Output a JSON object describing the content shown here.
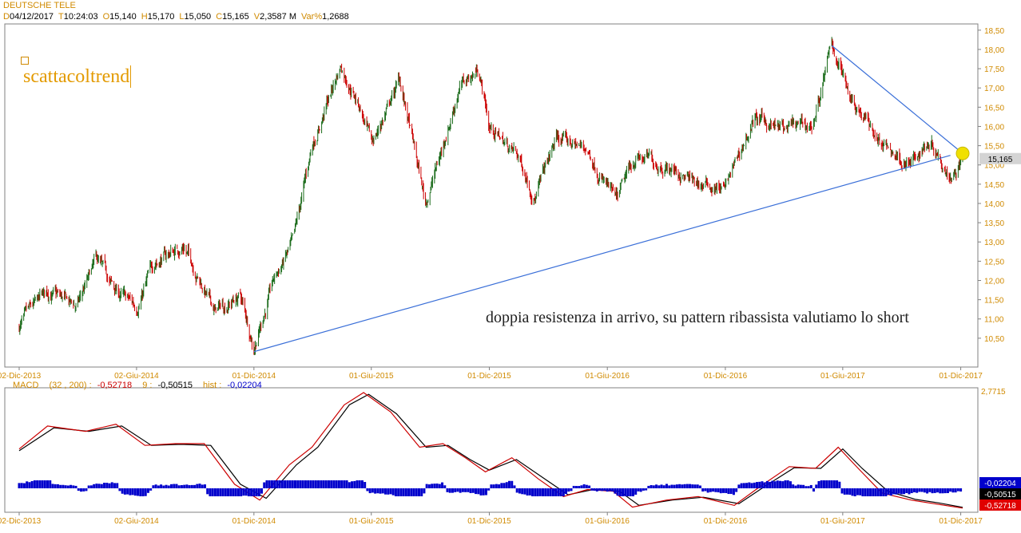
{
  "header": {
    "title": "DEUTSCHE TELE",
    "fields": [
      {
        "key": "D",
        "value": "04/12/2017"
      },
      {
        "key": "T",
        "value": "10:24:03"
      },
      {
        "key": "O",
        "value": "15,140"
      },
      {
        "key": "H",
        "value": "15,170"
      },
      {
        "key": "L",
        "value": "15,050"
      },
      {
        "key": "C",
        "value": "15,165"
      },
      {
        "key": "V",
        "value": "2,3587 M"
      },
      {
        "key": "Var%",
        "value": "1,2688"
      }
    ]
  },
  "logo_text": "scattacoltrend",
  "annotation": "doppia resistenza in arrivo, su pattern ribassista valutiamo lo short",
  "price_tag": "15,165",
  "macd": {
    "label": "MACD",
    "params": "(32 , 200) :",
    "macd_value": "-0,52718",
    "signal_label": "9 :",
    "signal_value": "-0,50515",
    "hist_label": "hist :",
    "hist_value": "-0,02204",
    "axis_top": "2,7715",
    "tag_hist": "-0,02204",
    "tag_signal": "-0,50515",
    "tag_macd": "-0,52718"
  },
  "colors": {
    "up": "#1a6b1a",
    "down": "#cc0000",
    "trendline": "#3a6fd8",
    "highlight": "#f0e000",
    "axis_text": "#d08a00",
    "hist": "#0000cc",
    "macd_line": "#cc0000",
    "signal_line": "#000000"
  },
  "chart_data": [
    {
      "type": "candlestick",
      "title": "DEUTSCHE TELE",
      "x_ticks": [
        "02-Dic-2013",
        "02-Giu-2014",
        "01-Dic-2014",
        "01-Giu-2015",
        "01-Dic-2015",
        "01-Giu-2016",
        "01-Dic-2016",
        "01-Giu-2017",
        "01-Dic-2017"
      ],
      "y_ticks": [
        "10,50",
        "11,00",
        "11,50",
        "12,00",
        "12,50",
        "13,00",
        "13,50",
        "14,00",
        "14,50",
        "15,00",
        "15,50",
        "16,00",
        "16,50",
        "17,00",
        "17,50",
        "18,00",
        "18,50"
      ],
      "ylim": [
        10.0,
        18.6
      ],
      "grid": false,
      "approx_close_path": [
        {
          "date": "2013-12-02",
          "price": 10.8
        },
        {
          "date": "2014-01-15",
          "price": 11.7
        },
        {
          "date": "2014-03-01",
          "price": 11.3
        },
        {
          "date": "2014-04-01",
          "price": 12.5
        },
        {
          "date": "2014-05-01",
          "price": 11.7
        },
        {
          "date": "2014-06-02",
          "price": 11.3
        },
        {
          "date": "2014-07-01",
          "price": 12.5
        },
        {
          "date": "2014-08-15",
          "price": 12.9
        },
        {
          "date": "2014-10-01",
          "price": 11.2
        },
        {
          "date": "2014-11-10",
          "price": 11.6
        },
        {
          "date": "2014-12-01",
          "price": 10.3
        },
        {
          "date": "2015-01-01",
          "price": 12.0
        },
        {
          "date": "2015-02-01",
          "price": 13.0
        },
        {
          "date": "2015-03-01",
          "price": 15.5
        },
        {
          "date": "2015-04-15",
          "price": 17.6
        },
        {
          "date": "2015-05-15",
          "price": 16.5
        },
        {
          "date": "2015-06-01",
          "price": 15.5
        },
        {
          "date": "2015-07-15",
          "price": 17.2
        },
        {
          "date": "2015-08-24",
          "price": 14.0
        },
        {
          "date": "2015-09-15",
          "price": 15.2
        },
        {
          "date": "2015-10-15",
          "price": 17.0
        },
        {
          "date": "2015-11-15",
          "price": 17.5
        },
        {
          "date": "2015-12-01",
          "price": 16.0
        },
        {
          "date": "2016-01-15",
          "price": 15.2
        },
        {
          "date": "2016-02-10",
          "price": 14.2
        },
        {
          "date": "2016-03-15",
          "price": 15.7
        },
        {
          "date": "2016-05-01",
          "price": 15.4
        },
        {
          "date": "2016-06-15",
          "price": 14.0
        },
        {
          "date": "2016-07-15",
          "price": 15.2
        },
        {
          "date": "2016-09-01",
          "price": 15.0
        },
        {
          "date": "2016-10-15",
          "price": 14.5
        },
        {
          "date": "2016-12-01",
          "price": 14.4
        },
        {
          "date": "2017-01-15",
          "price": 16.2
        },
        {
          "date": "2017-03-01",
          "price": 15.9
        },
        {
          "date": "2017-04-15",
          "price": 16.0
        },
        {
          "date": "2017-05-15",
          "price": 18.1
        },
        {
          "date": "2017-06-15",
          "price": 16.8
        },
        {
          "date": "2017-08-01",
          "price": 15.5
        },
        {
          "date": "2017-09-15",
          "price": 15.0
        },
        {
          "date": "2017-10-15",
          "price": 15.7
        },
        {
          "date": "2017-11-15",
          "price": 14.8
        },
        {
          "date": "2017-12-04",
          "price": 15.165
        }
      ],
      "annotations": {
        "rising_trendline": [
          {
            "date": "2014-12-01",
            "price": 10.15
          },
          {
            "date": "2017-11-15",
            "price": 15.25
          }
        ],
        "falling_trendline": [
          {
            "date": "2017-05-15",
            "price": 18.1
          },
          {
            "date": "2017-12-04",
            "price": 15.3
          }
        ]
      }
    },
    {
      "type": "line",
      "title": "MACD",
      "ylim": [
        -0.6,
        2.7715
      ],
      "x_ticks": [
        "02-Dic-2013",
        "02-Giu-2014",
        "01-Dic-2014",
        "01-Giu-2015",
        "01-Dic-2015",
        "01-Giu-2016",
        "01-Dic-2016",
        "01-Giu-2017",
        "01-Dic-2017"
      ],
      "series": [
        {
          "name": "MACD",
          "color": "#cc0000",
          "values": [
            {
              "date": "2013-12-02",
              "v": 1.15
            },
            {
              "date": "2014-01-15",
              "v": 1.8
            },
            {
              "date": "2014-03-15",
              "v": 1.65
            },
            {
              "date": "2014-05-01",
              "v": 1.85
            },
            {
              "date": "2014-06-15",
              "v": 1.25
            },
            {
              "date": "2014-08-01",
              "v": 1.3
            },
            {
              "date": "2014-09-15",
              "v": 1.3
            },
            {
              "date": "2014-11-01",
              "v": 0.15
            },
            {
              "date": "2014-12-10",
              "v": -0.3
            },
            {
              "date": "2015-01-25",
              "v": 0.7
            },
            {
              "date": "2015-03-01",
              "v": 1.2
            },
            {
              "date": "2015-04-20",
              "v": 2.4
            },
            {
              "date": "2015-05-20",
              "v": 2.75
            },
            {
              "date": "2015-07-01",
              "v": 2.2
            },
            {
              "date": "2015-08-15",
              "v": 1.2
            },
            {
              "date": "2015-09-20",
              "v": 1.3
            },
            {
              "date": "2015-10-25",
              "v": 0.9
            },
            {
              "date": "2015-11-25",
              "v": 0.5
            },
            {
              "date": "2016-01-05",
              "v": 0.9
            },
            {
              "date": "2016-02-15",
              "v": 0.3
            },
            {
              "date": "2016-03-25",
              "v": -0.2
            },
            {
              "date": "2016-05-01",
              "v": 0.0
            },
            {
              "date": "2016-06-10",
              "v": -0.05
            },
            {
              "date": "2016-07-10",
              "v": -0.5
            },
            {
              "date": "2016-09-01",
              "v": -0.3
            },
            {
              "date": "2016-10-20",
              "v": -0.2
            },
            {
              "date": "2016-12-15",
              "v": -0.45
            },
            {
              "date": "2017-01-25",
              "v": 0.1
            },
            {
              "date": "2017-03-10",
              "v": 0.65
            },
            {
              "date": "2017-04-20",
              "v": 0.6
            },
            {
              "date": "2017-05-25",
              "v": 1.2
            },
            {
              "date": "2017-06-25",
              "v": 0.6
            },
            {
              "date": "2017-08-01",
              "v": -0.1
            },
            {
              "date": "2017-09-15",
              "v": -0.3
            },
            {
              "date": "2017-10-20",
              "v": -0.4
            },
            {
              "date": "2017-12-04",
              "v": -0.52718
            }
          ]
        },
        {
          "name": "9",
          "color": "#000000",
          "values": [
            {
              "date": "2013-12-02",
              "v": 1.1
            },
            {
              "date": "2014-01-25",
              "v": 1.75
            },
            {
              "date": "2014-03-20",
              "v": 1.65
            },
            {
              "date": "2014-05-10",
              "v": 1.8
            },
            {
              "date": "2014-06-25",
              "v": 1.25
            },
            {
              "date": "2014-08-10",
              "v": 1.28
            },
            {
              "date": "2014-09-25",
              "v": 1.25
            },
            {
              "date": "2014-11-10",
              "v": 0.15
            },
            {
              "date": "2014-12-20",
              "v": -0.25
            },
            {
              "date": "2015-02-05",
              "v": 0.7
            },
            {
              "date": "2015-03-10",
              "v": 1.2
            },
            {
              "date": "2015-04-28",
              "v": 2.4
            },
            {
              "date": "2015-05-28",
              "v": 2.7
            },
            {
              "date": "2015-07-10",
              "v": 2.15
            },
            {
              "date": "2015-08-25",
              "v": 1.2
            },
            {
              "date": "2015-09-28",
              "v": 1.25
            },
            {
              "date": "2015-11-01",
              "v": 0.85
            },
            {
              "date": "2015-12-01",
              "v": 0.55
            },
            {
              "date": "2016-01-12",
              "v": 0.85
            },
            {
              "date": "2016-02-25",
              "v": 0.3
            },
            {
              "date": "2016-04-01",
              "v": -0.15
            },
            {
              "date": "2016-05-10",
              "v": 0.0
            },
            {
              "date": "2016-06-20",
              "v": -0.05
            },
            {
              "date": "2016-07-20",
              "v": -0.45
            },
            {
              "date": "2016-09-10",
              "v": -0.3
            },
            {
              "date": "2016-10-28",
              "v": -0.22
            },
            {
              "date": "2016-12-22",
              "v": -0.4
            },
            {
              "date": "2017-02-01",
              "v": 0.1
            },
            {
              "date": "2017-03-18",
              "v": 0.62
            },
            {
              "date": "2017-04-28",
              "v": 0.6
            },
            {
              "date": "2017-06-01",
              "v": 1.15
            },
            {
              "date": "2017-07-01",
              "v": 0.6
            },
            {
              "date": "2017-08-10",
              "v": -0.05
            },
            {
              "date": "2017-09-22",
              "v": -0.28
            },
            {
              "date": "2017-10-28",
              "v": -0.38
            },
            {
              "date": "2017-12-04",
              "v": -0.50515
            }
          ]
        },
        {
          "name": "hist",
          "color": "#0000cc",
          "values": []
        }
      ]
    }
  ]
}
